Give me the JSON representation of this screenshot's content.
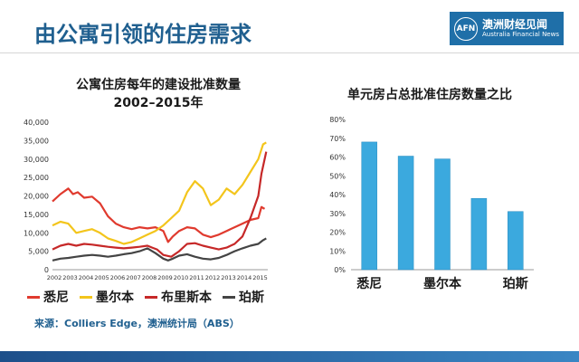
{
  "slide": {
    "title": "由公寓引领的住房需求",
    "brand_logo": "AFN",
    "brand_name_cn": "澳洲财经见闻",
    "brand_name_en": "Australia Financial News",
    "source": "来源：Colliers Edge，澳洲统计局（ABS）",
    "colors": {
      "title": "#1f5f8f",
      "brand_bg": "#1f6fa8",
      "footer": "#2a6db0"
    }
  },
  "chart_data": [
    {
      "type": "line",
      "title_line1": "公寓住房每年的建设批准数量",
      "title_line2": "2002–2015年",
      "ylim": [
        0,
        40000
      ],
      "yticks": [
        "0",
        "5,000",
        "10,000",
        "15,000",
        "20,000",
        "25,000",
        "30,000",
        "35,000",
        "40,000"
      ],
      "xticks": [
        "2002",
        "2003",
        "2004",
        "2005",
        "2006",
        "2007",
        "2008",
        "2009",
        "2010",
        "2011",
        "2012",
        "2013",
        "2014",
        "2015"
      ],
      "xlim": [
        2002,
        2015.6
      ],
      "series": [
        {
          "name": "悉尼",
          "color": "#e03a2e",
          "x": [
            2002,
            2002.5,
            2003,
            2003.3,
            2003.6,
            2004,
            2004.5,
            2005,
            2005.5,
            2006,
            2006.5,
            2007,
            2007.5,
            2008,
            2008.5,
            2009,
            2009.3,
            2009.6,
            2010,
            2010.5,
            2011,
            2011.5,
            2012,
            2012.5,
            2013,
            2013.5,
            2014,
            2014.5,
            2015,
            2015.2,
            2015.4
          ],
          "y": [
            18500,
            20500,
            22000,
            20500,
            21000,
            19500,
            19800,
            18000,
            14500,
            12500,
            11500,
            11000,
            11500,
            11200,
            11500,
            10500,
            7500,
            9000,
            10500,
            11500,
            11200,
            9500,
            8800,
            9500,
            10500,
            11500,
            12500,
            13500,
            14000,
            17000,
            16500
          ]
        },
        {
          "name": "墨尔本",
          "color": "#f3c51c",
          "x": [
            2002,
            2002.5,
            2003,
            2003.5,
            2004,
            2004.5,
            2005,
            2005.5,
            2006,
            2006.5,
            2007,
            2007.5,
            2008,
            2008.5,
            2009,
            2009.5,
            2010,
            2010.5,
            2011,
            2011.5,
            2012,
            2012.5,
            2013,
            2013.5,
            2014,
            2014.5,
            2015,
            2015.3,
            2015.5
          ],
          "y": [
            12000,
            13000,
            12500,
            10000,
            10500,
            11000,
            10000,
            8500,
            7800,
            7000,
            7500,
            8500,
            9500,
            10500,
            12000,
            14000,
            16000,
            21000,
            24000,
            22000,
            17500,
            19000,
            22000,
            20500,
            23000,
            26500,
            30000,
            34000,
            34500
          ]
        },
        {
          "name": "布里斯本",
          "color": "#c62828",
          "x": [
            2002,
            2002.5,
            2003,
            2003.5,
            2004,
            2004.5,
            2005,
            2005.5,
            2006,
            2006.5,
            2007,
            2007.5,
            2008,
            2008.3,
            2008.6,
            2009,
            2009.5,
            2010,
            2010.5,
            2011,
            2011.5,
            2012,
            2012.5,
            2013,
            2013.5,
            2014,
            2014.5,
            2015,
            2015.2,
            2015.5
          ],
          "y": [
            5500,
            6500,
            7000,
            6500,
            7000,
            6800,
            6500,
            6200,
            6000,
            5800,
            6000,
            6200,
            6500,
            6000,
            5500,
            4000,
            3500,
            5000,
            7000,
            7200,
            6500,
            6000,
            5500,
            6000,
            7000,
            9000,
            14000,
            20000,
            26000,
            32000
          ]
        },
        {
          "name": "珀斯",
          "color": "#444444",
          "x": [
            2002,
            2002.5,
            2003,
            2003.5,
            2004,
            2004.5,
            2005,
            2005.5,
            2006,
            2006.5,
            2007,
            2007.5,
            2008,
            2008.5,
            2009,
            2009.3,
            2009.6,
            2010,
            2010.5,
            2011,
            2011.5,
            2012,
            2012.5,
            2013,
            2013.5,
            2014,
            2014.5,
            2015,
            2015.3,
            2015.5
          ],
          "y": [
            2500,
            3000,
            3200,
            3500,
            3800,
            4000,
            3800,
            3500,
            3800,
            4200,
            4500,
            5000,
            5800,
            4500,
            3000,
            2500,
            3000,
            3800,
            4200,
            3500,
            3000,
            2800,
            3200,
            4000,
            5000,
            5800,
            6500,
            7000,
            8000,
            8500
          ]
        }
      ]
    },
    {
      "type": "bar",
      "title": "单元房占总批准住房数量之比",
      "categories": [
        "悉尼",
        "",
        "墨尔本",
        "",
        "珀斯"
      ],
      "values": [
        68,
        60.5,
        59,
        38,
        31
      ],
      "ylim": [
        0,
        80
      ],
      "yticks": [
        "0%",
        "10%",
        "20%",
        "30%",
        "40%",
        "50%",
        "60%",
        "70%",
        "80%"
      ],
      "color": "#3ba9de"
    }
  ]
}
